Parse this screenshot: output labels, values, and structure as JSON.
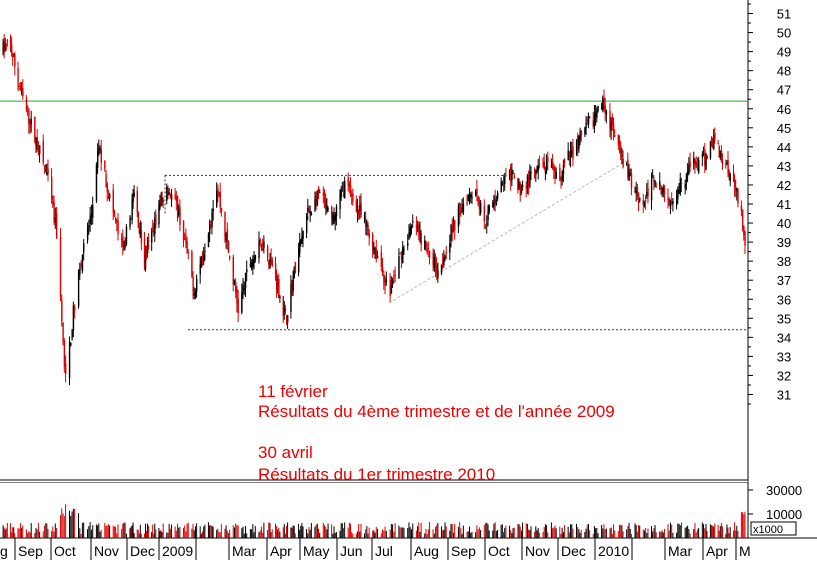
{
  "chart_data": {
    "type": "candlestick",
    "title": "",
    "xlabel": "",
    "ylabel": "",
    "ylim": [
      30.4,
      51.5
    ],
    "y_ticks": [
      31,
      32,
      33,
      34,
      35,
      36,
      37,
      38,
      39,
      40,
      41,
      42,
      43,
      44,
      45,
      46,
      47,
      48,
      49,
      50,
      51
    ],
    "volume_ticks": [
      "30000",
      "10000"
    ],
    "volume_unit": "x1000",
    "x_ticks": [
      "g",
      "Sep",
      "Oct",
      "Nov",
      "Dec",
      "2009",
      "Mar",
      "Apr",
      "May",
      "Jun",
      "Jul",
      "Aug",
      "Sep",
      "Oct",
      "Nov",
      "Dec",
      "2010",
      "Mar",
      "Apr",
      "M"
    ],
    "price_path": [
      [
        "2008-08",
        48.8
      ],
      [
        "2008-08-25",
        49.3
      ],
      [
        "2008-09-05",
        46.5
      ],
      [
        "2008-09-15",
        44.5
      ],
      [
        "2008-09-25",
        42.5
      ],
      [
        "2008-10-03",
        39.5
      ],
      [
        "2008-10-08",
        33.5
      ],
      [
        "2008-10-10",
        31.8
      ],
      [
        "2008-10-20",
        37.5
      ],
      [
        "2008-10-30",
        40.5
      ],
      [
        "2008-11-05",
        44.0
      ],
      [
        "2008-11-15",
        41.0
      ],
      [
        "2008-11-25",
        38.5
      ],
      [
        "2008-12-05",
        41.5
      ],
      [
        "2008-12-15",
        38.0
      ],
      [
        "2008-12-25",
        40.0
      ],
      [
        "2009-01-05",
        42.0
      ],
      [
        "2009-01-15",
        40.5
      ],
      [
        "2009-01-28",
        36.5
      ],
      [
        "2009-02-08",
        39.5
      ],
      [
        "2009-02-16",
        42.0
      ],
      [
        "2009-02-26",
        38.5
      ],
      [
        "2009-03-06",
        35.5
      ],
      [
        "2009-03-16",
        38.0
      ],
      [
        "2009-03-26",
        39.0
      ],
      [
        "2009-04-05",
        37.5
      ],
      [
        "2009-04-15",
        35.0
      ],
      [
        "2009-04-25",
        38.0
      ],
      [
        "2009-05-05",
        40.5
      ],
      [
        "2009-05-15",
        41.5
      ],
      [
        "2009-05-25",
        40.0
      ],
      [
        "2009-06-05",
        42.0
      ],
      [
        "2009-06-15",
        41.0
      ],
      [
        "2009-06-25",
        39.5
      ],
      [
        "2009-07-05",
        38.0
      ],
      [
        "2009-07-12",
        36.2
      ],
      [
        "2009-07-22",
        38.5
      ],
      [
        "2009-08-01",
        40.0
      ],
      [
        "2009-08-12",
        38.5
      ],
      [
        "2009-08-22",
        37.6
      ],
      [
        "2009-09-01",
        39.5
      ],
      [
        "2009-09-10",
        41.0
      ],
      [
        "2009-09-20",
        42.0
      ],
      [
        "2009-09-28",
        40.0
      ],
      [
        "2009-10-08",
        41.5
      ],
      [
        "2009-10-18",
        42.5
      ],
      [
        "2009-10-28",
        41.8
      ],
      [
        "2009-11-08",
        42.5
      ],
      [
        "2009-11-18",
        43.0
      ],
      [
        "2009-11-28",
        42.2
      ],
      [
        "2009-12-08",
        43.5
      ],
      [
        "2009-12-18",
        44.5
      ],
      [
        "2009-12-28",
        45.5
      ],
      [
        "2010-01-06",
        46.4
      ],
      [
        "2010-01-12",
        45.0
      ],
      [
        "2010-01-20",
        43.5
      ],
      [
        "2010-01-30",
        42.0
      ],
      [
        "2010-02-08",
        41.0
      ],
      [
        "2010-02-18",
        42.5
      ],
      [
        "2010-02-28",
        41.0
      ],
      [
        "2010-03-10",
        42.0
      ],
      [
        "2010-03-20",
        43.0
      ],
      [
        "2010-03-30",
        43.2
      ],
      [
        "2010-04-08",
        44.5
      ],
      [
        "2010-04-15",
        43.5
      ],
      [
        "2010-04-25",
        42.5
      ],
      [
        "2010-05-02",
        41.0
      ],
      [
        "2010-05-06",
        39.0
      ],
      [
        "2010-05-08",
        37.0
      ]
    ],
    "annotations": [
      "11 février",
      " Résultats du 4ème trimestre et de l'année 2009",
      "30 avril",
      " Résultats du 1er trimestre 2010"
    ],
    "levels": [
      {
        "value": 46.4,
        "color": "#22aa22",
        "style": "solid"
      },
      {
        "value": 42.5,
        "color": "#333333",
        "style": "dotted"
      },
      {
        "value": 34.4,
        "color": "#333333",
        "style": "dotted"
      }
    ],
    "trend_line": {
      "from": [
        "2009-07-12",
        35.8
      ],
      "to": [
        "2010-01-26",
        43.3
      ],
      "color": "#bbbbbb"
    },
    "colors": {
      "up": "#000000",
      "down": "#dd0000",
      "annotation": "#ee0000",
      "grid": "#888888"
    }
  }
}
